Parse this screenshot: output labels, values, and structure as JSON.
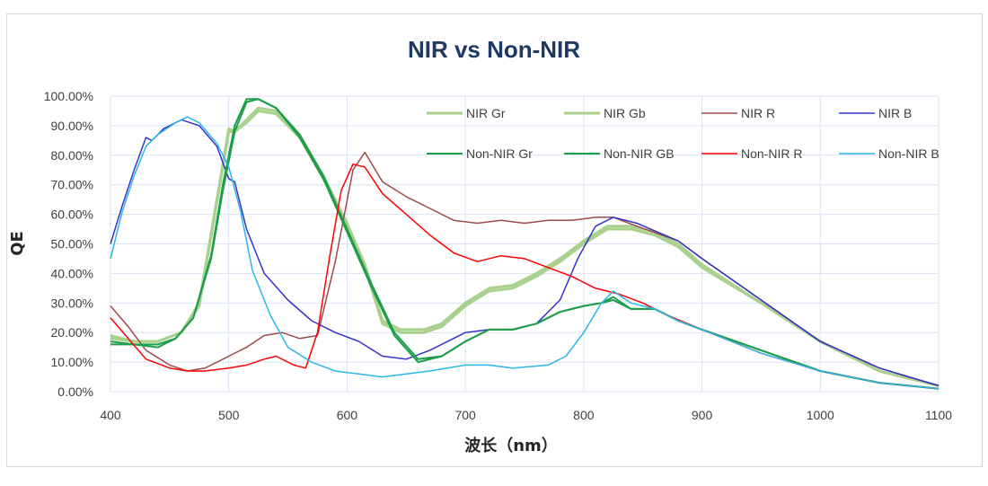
{
  "chart_data": {
    "type": "line",
    "title": "NIR vs Non-NIR",
    "xlabel": "波长（nm）",
    "ylabel": "QE",
    "xlim": [
      400,
      1100
    ],
    "ylim": [
      0,
      100
    ],
    "x_ticks": [
      400,
      500,
      600,
      700,
      800,
      900,
      1000,
      1100
    ],
    "y_ticks": [
      "0.00%",
      "10.00%",
      "20.00%",
      "30.00%",
      "40.00%",
      "50.00%",
      "60.00%",
      "70.00%",
      "80.00%",
      "90.00%",
      "100.00%"
    ],
    "grid": true,
    "legend_position": "top-right",
    "series": [
      {
        "name": "NIR Gr",
        "color": "#a9d18e",
        "width": 3,
        "points": [
          [
            400,
            19
          ],
          [
            420,
            17
          ],
          [
            440,
            17
          ],
          [
            460,
            20
          ],
          [
            475,
            30
          ],
          [
            490,
            65
          ],
          [
            500,
            89
          ],
          [
            505,
            88
          ],
          [
            515,
            92
          ],
          [
            525,
            96
          ],
          [
            540,
            95
          ],
          [
            560,
            86
          ],
          [
            580,
            73
          ],
          [
            600,
            57
          ],
          [
            615,
            43
          ],
          [
            630,
            24
          ],
          [
            645,
            21
          ],
          [
            665,
            21
          ],
          [
            680,
            23
          ],
          [
            700,
            30
          ],
          [
            720,
            35
          ],
          [
            740,
            36
          ],
          [
            760,
            40
          ],
          [
            780,
            45
          ],
          [
            800,
            51
          ],
          [
            820,
            56
          ],
          [
            840,
            56
          ],
          [
            860,
            54
          ],
          [
            880,
            50
          ],
          [
            900,
            43
          ],
          [
            950,
            30
          ],
          [
            1000,
            17
          ],
          [
            1050,
            7
          ],
          [
            1100,
            2
          ]
        ]
      },
      {
        "name": "NIR Gb",
        "color": "#a9d18e",
        "width": 3,
        "points": [
          [
            400,
            18
          ],
          [
            420,
            17
          ],
          [
            440,
            17
          ],
          [
            460,
            20
          ],
          [
            475,
            29
          ],
          [
            490,
            64
          ],
          [
            500,
            88
          ],
          [
            505,
            88
          ],
          [
            515,
            91
          ],
          [
            525,
            95
          ],
          [
            540,
            94
          ],
          [
            560,
            86
          ],
          [
            580,
            72
          ],
          [
            600,
            56
          ],
          [
            615,
            42
          ],
          [
            630,
            23
          ],
          [
            645,
            20
          ],
          [
            665,
            20
          ],
          [
            680,
            22
          ],
          [
            700,
            29
          ],
          [
            720,
            34
          ],
          [
            740,
            35
          ],
          [
            760,
            39
          ],
          [
            780,
            44
          ],
          [
            800,
            50
          ],
          [
            820,
            55
          ],
          [
            840,
            55
          ],
          [
            860,
            53
          ],
          [
            880,
            49
          ],
          [
            900,
            42
          ],
          [
            950,
            30
          ],
          [
            1000,
            17
          ],
          [
            1050,
            7
          ],
          [
            1100,
            2
          ]
        ]
      },
      {
        "name": "NIR R",
        "color": "#9e4a4a",
        "width": 1.5,
        "points": [
          [
            400,
            29
          ],
          [
            415,
            22
          ],
          [
            430,
            14
          ],
          [
            450,
            9
          ],
          [
            465,
            7
          ],
          [
            480,
            8
          ],
          [
            500,
            12
          ],
          [
            515,
            15
          ],
          [
            530,
            19
          ],
          [
            545,
            20
          ],
          [
            560,
            18
          ],
          [
            575,
            19
          ],
          [
            590,
            44
          ],
          [
            605,
            75
          ],
          [
            615,
            81
          ],
          [
            630,
            71
          ],
          [
            650,
            66
          ],
          [
            670,
            62
          ],
          [
            690,
            58
          ],
          [
            710,
            57
          ],
          [
            730,
            58
          ],
          [
            750,
            57
          ],
          [
            770,
            58
          ],
          [
            790,
            58
          ],
          [
            810,
            59
          ],
          [
            825,
            59
          ],
          [
            845,
            56
          ],
          [
            880,
            51
          ],
          [
            900,
            45
          ],
          [
            950,
            31
          ],
          [
            1000,
            17
          ],
          [
            1050,
            8
          ],
          [
            1100,
            2
          ]
        ]
      },
      {
        "name": "NIR B",
        "color": "#3333cc",
        "width": 1.5,
        "points": [
          [
            400,
            50
          ],
          [
            410,
            63
          ],
          [
            420,
            75
          ],
          [
            430,
            86
          ],
          [
            435,
            85
          ],
          [
            445,
            89
          ],
          [
            460,
            92
          ],
          [
            475,
            90
          ],
          [
            490,
            83
          ],
          [
            500,
            72
          ],
          [
            505,
            71
          ],
          [
            515,
            55
          ],
          [
            530,
            40
          ],
          [
            550,
            31
          ],
          [
            570,
            24
          ],
          [
            590,
            20
          ],
          [
            610,
            17
          ],
          [
            630,
            12
          ],
          [
            650,
            11
          ],
          [
            670,
            14
          ],
          [
            700,
            20
          ],
          [
            720,
            21
          ],
          [
            740,
            21
          ],
          [
            760,
            23
          ],
          [
            780,
            31
          ],
          [
            795,
            45
          ],
          [
            810,
            56
          ],
          [
            825,
            59
          ],
          [
            845,
            57
          ],
          [
            880,
            51
          ],
          [
            900,
            45
          ],
          [
            950,
            31
          ],
          [
            1000,
            17
          ],
          [
            1050,
            8
          ],
          [
            1100,
            2
          ]
        ]
      },
      {
        "name": "Non-NIR Gr",
        "color": "#1e9e4a",
        "width": 2,
        "points": [
          [
            400,
            16
          ],
          [
            420,
            16
          ],
          [
            440,
            15
          ],
          [
            455,
            18
          ],
          [
            470,
            25
          ],
          [
            485,
            45
          ],
          [
            495,
            68
          ],
          [
            505,
            88
          ],
          [
            515,
            98
          ],
          [
            525,
            99
          ],
          [
            540,
            96
          ],
          [
            560,
            87
          ],
          [
            580,
            73
          ],
          [
            600,
            55
          ],
          [
            620,
            37
          ],
          [
            640,
            20
          ],
          [
            660,
            11
          ],
          [
            680,
            12
          ],
          [
            700,
            17
          ],
          [
            720,
            21
          ],
          [
            740,
            21
          ],
          [
            760,
            23
          ],
          [
            780,
            27
          ],
          [
            800,
            29
          ],
          [
            815,
            30
          ],
          [
            825,
            31
          ],
          [
            840,
            28
          ],
          [
            860,
            28
          ],
          [
            880,
            24
          ],
          [
            900,
            21
          ],
          [
            950,
            14
          ],
          [
            1000,
            7
          ],
          [
            1050,
            3
          ],
          [
            1100,
            1
          ]
        ]
      },
      {
        "name": "Non-NIR GB",
        "color": "#1e9e4a",
        "width": 2,
        "points": [
          [
            400,
            17
          ],
          [
            420,
            16
          ],
          [
            440,
            16
          ],
          [
            455,
            18
          ],
          [
            470,
            25
          ],
          [
            485,
            46
          ],
          [
            495,
            70
          ],
          [
            505,
            90
          ],
          [
            515,
            99
          ],
          [
            525,
            99
          ],
          [
            540,
            96
          ],
          [
            560,
            86
          ],
          [
            580,
            72
          ],
          [
            600,
            54
          ],
          [
            620,
            36
          ],
          [
            640,
            19
          ],
          [
            660,
            10
          ],
          [
            680,
            12
          ],
          [
            700,
            17
          ],
          [
            720,
            21
          ],
          [
            740,
            21
          ],
          [
            760,
            23
          ],
          [
            780,
            27
          ],
          [
            800,
            29
          ],
          [
            815,
            30
          ],
          [
            825,
            32
          ],
          [
            840,
            28
          ],
          [
            860,
            28
          ],
          [
            880,
            24
          ],
          [
            900,
            21
          ],
          [
            950,
            14
          ],
          [
            1000,
            7
          ],
          [
            1050,
            3
          ],
          [
            1100,
            1
          ]
        ]
      },
      {
        "name": "Non-NIR R",
        "color": "#ff0000",
        "width": 1.5,
        "points": [
          [
            400,
            25
          ],
          [
            415,
            18
          ],
          [
            430,
            11
          ],
          [
            450,
            8
          ],
          [
            465,
            7
          ],
          [
            480,
            7
          ],
          [
            500,
            8
          ],
          [
            515,
            9
          ],
          [
            530,
            11
          ],
          [
            540,
            12
          ],
          [
            555,
            9
          ],
          [
            565,
            8
          ],
          [
            575,
            20
          ],
          [
            585,
            45
          ],
          [
            595,
            68
          ],
          [
            605,
            77
          ],
          [
            615,
            76
          ],
          [
            630,
            67
          ],
          [
            650,
            60
          ],
          [
            670,
            53
          ],
          [
            690,
            47
          ],
          [
            710,
            44
          ],
          [
            730,
            46
          ],
          [
            750,
            45
          ],
          [
            770,
            42
          ],
          [
            790,
            39
          ],
          [
            810,
            35
          ],
          [
            830,
            33
          ],
          [
            850,
            30
          ],
          [
            870,
            26
          ],
          [
            900,
            21
          ],
          [
            950,
            13
          ],
          [
            1000,
            7
          ],
          [
            1050,
            3
          ],
          [
            1100,
            1
          ]
        ]
      },
      {
        "name": "Non-NIR B",
        "color": "#29b6e8",
        "width": 1.5,
        "points": [
          [
            400,
            45
          ],
          [
            410,
            61
          ],
          [
            420,
            73
          ],
          [
            430,
            83
          ],
          [
            440,
            87
          ],
          [
            455,
            91
          ],
          [
            465,
            93
          ],
          [
            475,
            91
          ],
          [
            490,
            84
          ],
          [
            500,
            76
          ],
          [
            510,
            61
          ],
          [
            520,
            41
          ],
          [
            535,
            26
          ],
          [
            550,
            15
          ],
          [
            570,
            10
          ],
          [
            590,
            7
          ],
          [
            610,
            6
          ],
          [
            630,
            5
          ],
          [
            650,
            6
          ],
          [
            670,
            7
          ],
          [
            700,
            9
          ],
          [
            720,
            9
          ],
          [
            740,
            8
          ],
          [
            770,
            9
          ],
          [
            785,
            12
          ],
          [
            800,
            20
          ],
          [
            815,
            30
          ],
          [
            825,
            34
          ],
          [
            840,
            30
          ],
          [
            860,
            28
          ],
          [
            880,
            24
          ],
          [
            900,
            21
          ],
          [
            950,
            13
          ],
          [
            1000,
            7
          ],
          [
            1050,
            3
          ],
          [
            1100,
            1
          ]
        ]
      }
    ]
  }
}
